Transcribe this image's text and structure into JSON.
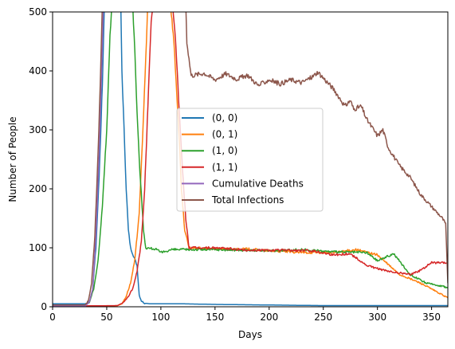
{
  "chart_data": {
    "type": "line",
    "title": "",
    "xlabel": "Days",
    "ylabel": "Number of People",
    "xlim": [
      0,
      365
    ],
    "ylim": [
      0,
      500
    ],
    "xticks": [
      0,
      50,
      100,
      150,
      200,
      250,
      300,
      350
    ],
    "yticks": [
      0,
      100,
      200,
      300,
      400,
      500
    ],
    "grid": false,
    "legend_placement": "center",
    "series": [
      {
        "name": "(0, 0)",
        "color": "#1f77b4",
        "points": [
          [
            0,
            5
          ],
          [
            30,
            5
          ],
          [
            34,
            8
          ],
          [
            37,
            30
          ],
          [
            40,
            100
          ],
          [
            43,
            220
          ],
          [
            46,
            380
          ],
          [
            48,
            520
          ],
          [
            63,
            510
          ],
          [
            64,
            400
          ],
          [
            66,
            300
          ],
          [
            68,
            200
          ],
          [
            70,
            130
          ],
          [
            72,
            100
          ],
          [
            78,
            70
          ],
          [
            80,
            20
          ],
          [
            82,
            10
          ],
          [
            85,
            6
          ],
          [
            90,
            5
          ],
          [
            120,
            5
          ],
          [
            150,
            4
          ],
          [
            200,
            3
          ],
          [
            250,
            2
          ],
          [
            300,
            2
          ],
          [
            365,
            2
          ]
        ]
      },
      {
        "name": "(0, 1)",
        "color": "#ff7f0e",
        "points": [
          [
            0,
            2
          ],
          [
            50,
            1
          ],
          [
            60,
            2
          ],
          [
            64,
            5
          ],
          [
            68,
            18
          ],
          [
            72,
            40
          ],
          [
            76,
            80
          ],
          [
            80,
            160
          ],
          [
            83,
            280
          ],
          [
            86,
            420
          ],
          [
            88,
            520
          ],
          [
            109,
            510
          ],
          [
            112,
            450
          ],
          [
            116,
            320
          ],
          [
            119,
            200
          ],
          [
            122,
            130
          ],
          [
            126,
            100
          ],
          [
            150,
            98
          ],
          [
            180,
            98
          ],
          [
            200,
            95
          ],
          [
            230,
            92
          ],
          [
            260,
            92
          ],
          [
            280,
            97
          ],
          [
            300,
            88
          ],
          [
            320,
            55
          ],
          [
            340,
            40
          ],
          [
            355,
            25
          ],
          [
            365,
            15
          ]
        ]
      },
      {
        "name": "(1, 0)",
        "color": "#2ca02c",
        "points": [
          [
            0,
            2
          ],
          [
            30,
            2
          ],
          [
            34,
            8
          ],
          [
            38,
            30
          ],
          [
            42,
            80
          ],
          [
            46,
            170
          ],
          [
            50,
            300
          ],
          [
            53,
            460
          ],
          [
            55,
            520
          ],
          [
            74,
            510
          ],
          [
            76,
            430
          ],
          [
            78,
            330
          ],
          [
            80,
            250
          ],
          [
            82,
            190
          ],
          [
            84,
            130
          ],
          [
            86,
            100
          ],
          [
            95,
            98
          ],
          [
            100,
            92
          ],
          [
            110,
            97
          ],
          [
            150,
            97
          ],
          [
            200,
            95
          ],
          [
            230,
            97
          ],
          [
            260,
            93
          ],
          [
            290,
            92
          ],
          [
            300,
            78
          ],
          [
            315,
            90
          ],
          [
            330,
            55
          ],
          [
            345,
            40
          ],
          [
            360,
            35
          ],
          [
            365,
            32
          ]
        ]
      },
      {
        "name": "(1, 1)",
        "color": "#d62728",
        "points": [
          [
            0,
            1
          ],
          [
            60,
            2
          ],
          [
            66,
            8
          ],
          [
            70,
            18
          ],
          [
            74,
            30
          ],
          [
            78,
            60
          ],
          [
            82,
            110
          ],
          [
            85,
            200
          ],
          [
            88,
            340
          ],
          [
            91,
            480
          ],
          [
            93,
            520
          ],
          [
            111,
            510
          ],
          [
            114,
            440
          ],
          [
            117,
            330
          ],
          [
            120,
            230
          ],
          [
            123,
            150
          ],
          [
            126,
            100
          ],
          [
            150,
            100
          ],
          [
            180,
            96
          ],
          [
            210,
            96
          ],
          [
            240,
            95
          ],
          [
            260,
            88
          ],
          [
            275,
            90
          ],
          [
            290,
            70
          ],
          [
            310,
            60
          ],
          [
            330,
            55
          ],
          [
            340,
            62
          ],
          [
            350,
            75
          ],
          [
            365,
            74
          ]
        ]
      },
      {
        "name": "Cumulative Deaths",
        "color": "#9467bd",
        "points": [
          [
            0,
            1
          ],
          [
            30,
            1
          ],
          [
            34,
            8
          ],
          [
            37,
            30
          ],
          [
            40,
            120
          ],
          [
            43,
            260
          ],
          [
            45,
            380
          ],
          [
            47,
            520
          ],
          [
            365,
            520
          ]
        ]
      },
      {
        "name": "Total Infections",
        "color": "#8c564b",
        "points": [
          [
            0,
            3
          ],
          [
            30,
            3
          ],
          [
            33,
            10
          ],
          [
            36,
            40
          ],
          [
            39,
            120
          ],
          [
            42,
            260
          ],
          [
            44,
            380
          ],
          [
            46,
            520
          ],
          [
            123,
            515
          ],
          [
            124,
            450
          ],
          [
            126,
            420
          ],
          [
            128,
            392
          ],
          [
            140,
            396
          ],
          [
            150,
            385
          ],
          [
            160,
            395
          ],
          [
            170,
            386
          ],
          [
            180,
            393
          ],
          [
            190,
            375
          ],
          [
            200,
            385
          ],
          [
            210,
            378
          ],
          [
            220,
            385
          ],
          [
            230,
            380
          ],
          [
            240,
            390
          ],
          [
            245,
            398
          ],
          [
            250,
            388
          ],
          [
            260,
            368
          ],
          [
            270,
            340
          ],
          [
            275,
            350
          ],
          [
            278,
            335
          ],
          [
            285,
            340
          ],
          [
            290,
            318
          ],
          [
            300,
            290
          ],
          [
            305,
            300
          ],
          [
            310,
            270
          ],
          [
            320,
            240
          ],
          [
            330,
            220
          ],
          [
            340,
            190
          ],
          [
            350,
            170
          ],
          [
            360,
            150
          ],
          [
            363,
            140
          ],
          [
            365,
            40
          ]
        ]
      }
    ]
  }
}
